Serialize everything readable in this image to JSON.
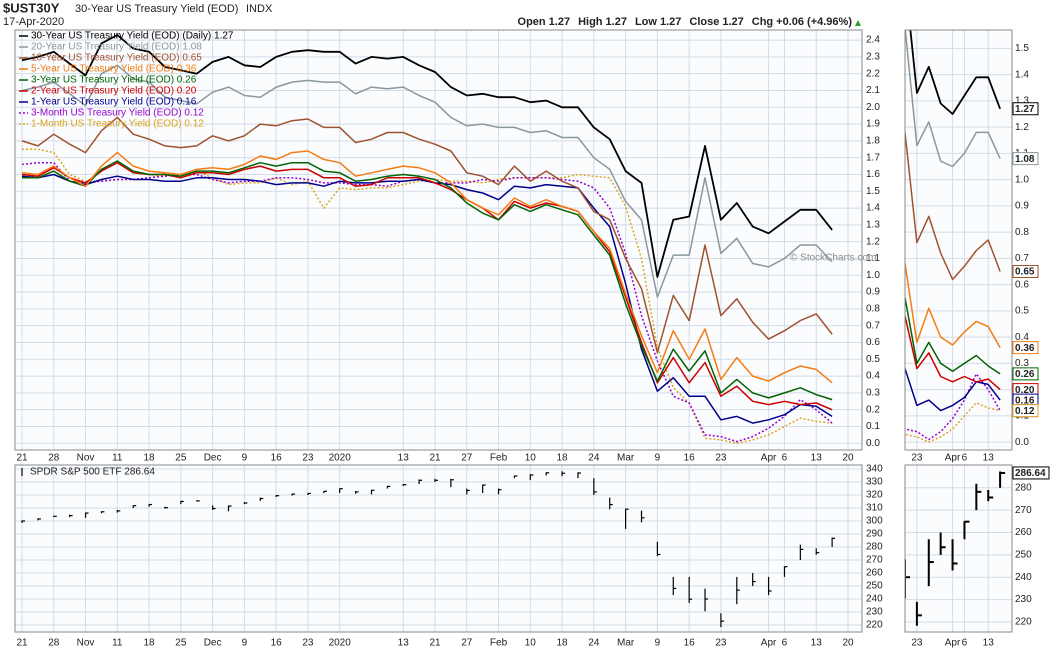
{
  "header": {
    "symbol": "$UST30Y",
    "name": "30-Year US Treasury Yield (EOD)",
    "exchange": "INDX",
    "date": "17-Apr-2020",
    "quote": [
      [
        "Open",
        "1.27"
      ],
      [
        "High",
        "1.27"
      ],
      [
        "Low",
        "1.27"
      ],
      [
        "Close",
        "1.27"
      ],
      [
        "Chg",
        "+0.06 (+4.96%)"
      ]
    ],
    "credit": "© StockCharts.com"
  },
  "chart_data": [
    {
      "type": "line",
      "categories": [
        "21",
        null,
        "28",
        null,
        "Nov",
        null,
        "11",
        null,
        "18",
        null,
        "25",
        null,
        "Dec",
        null,
        "9",
        null,
        "16",
        null,
        "23",
        null,
        "2020",
        null,
        null,
        null,
        "13",
        null,
        "21",
        null,
        "27",
        null,
        "Feb",
        null,
        "10",
        null,
        "18",
        null,
        "24",
        null,
        "Mar",
        null,
        "9",
        null,
        "16",
        null,
        "23",
        null,
        null,
        "Apr",
        "6",
        null,
        "13",
        null,
        "20"
      ],
      "series": [
        {
          "name": "30-Year US Treasury Yield (EOD) (Daily) 1.27",
          "color": "#000000",
          "dash": false,
          "values": [
            2.28,
            2.3,
            2.33,
            2.26,
            2.19,
            2.38,
            2.43,
            2.35,
            2.33,
            2.24,
            2.22,
            2.2,
            2.27,
            2.3,
            2.25,
            2.24,
            2.3,
            2.33,
            2.34,
            2.33,
            2.33,
            2.26,
            2.3,
            2.29,
            2.3,
            2.25,
            2.21,
            2.12,
            2.07,
            2.08,
            2.06,
            2.06,
            2.03,
            2.04,
            2.0,
            2.0,
            1.88,
            1.81,
            1.62,
            1.55,
            0.99,
            1.33,
            1.35,
            1.77,
            1.33,
            1.43,
            1.29,
            1.25,
            1.32,
            1.39,
            1.39,
            1.27,
            null
          ]
        },
        {
          "name": "20-Year US Treasury Yield (EOD) 1.08",
          "color": "#8a979e",
          "dash": false,
          "values": [
            2.1,
            2.12,
            2.15,
            2.08,
            2.01,
            2.2,
            2.25,
            2.17,
            2.15,
            2.06,
            2.04,
            2.02,
            2.09,
            2.12,
            2.07,
            2.06,
            2.12,
            2.15,
            2.16,
            2.15,
            2.15,
            2.08,
            2.12,
            2.11,
            2.12,
            2.07,
            2.03,
            1.94,
            1.89,
            1.9,
            1.88,
            1.88,
            1.85,
            1.86,
            1.82,
            1.82,
            1.7,
            1.63,
            1.44,
            1.33,
            0.87,
            1.12,
            1.12,
            1.58,
            1.13,
            1.22,
            1.07,
            1.05,
            1.1,
            1.18,
            1.18,
            1.08,
            null
          ]
        },
        {
          "name": "10-Year US Treasury Yield (EOD) 0.65",
          "color": "#a0522d",
          "dash": false,
          "values": [
            1.8,
            1.77,
            1.84,
            1.78,
            1.73,
            1.86,
            1.94,
            1.84,
            1.81,
            1.77,
            1.76,
            1.77,
            1.83,
            1.8,
            1.83,
            1.9,
            1.89,
            1.92,
            1.93,
            1.88,
            1.88,
            1.79,
            1.81,
            1.85,
            1.85,
            1.81,
            1.78,
            1.74,
            1.61,
            1.59,
            1.54,
            1.65,
            1.56,
            1.62,
            1.56,
            1.52,
            1.38,
            1.33,
            1.1,
            0.92,
            0.54,
            0.88,
            0.73,
            1.18,
            0.76,
            0.86,
            0.72,
            0.62,
            0.67,
            0.73,
            0.77,
            0.65,
            null
          ]
        },
        {
          "name": "5-Year US Treasury Yield (EOD) 0.36",
          "color": "#f57c12",
          "dash": false,
          "values": [
            1.61,
            1.6,
            1.65,
            1.58,
            1.53,
            1.65,
            1.73,
            1.65,
            1.62,
            1.61,
            1.6,
            1.63,
            1.64,
            1.63,
            1.66,
            1.71,
            1.69,
            1.73,
            1.74,
            1.69,
            1.67,
            1.59,
            1.61,
            1.63,
            1.65,
            1.64,
            1.61,
            1.55,
            1.45,
            1.4,
            1.36,
            1.46,
            1.41,
            1.45,
            1.41,
            1.38,
            1.26,
            1.16,
            0.89,
            0.64,
            0.42,
            0.67,
            0.5,
            0.68,
            0.38,
            0.51,
            0.4,
            0.37,
            0.42,
            0.46,
            0.44,
            0.36,
            null
          ]
        },
        {
          "name": "3-Year US Treasury Yield (EOD) 0.26",
          "color": "#006400",
          "dash": false,
          "values": [
            1.58,
            1.58,
            1.62,
            1.56,
            1.53,
            1.63,
            1.68,
            1.62,
            1.6,
            1.6,
            1.59,
            1.62,
            1.62,
            1.61,
            1.64,
            1.67,
            1.65,
            1.67,
            1.67,
            1.62,
            1.61,
            1.56,
            1.57,
            1.59,
            1.6,
            1.59,
            1.57,
            1.52,
            1.43,
            1.37,
            1.33,
            1.42,
            1.38,
            1.42,
            1.39,
            1.36,
            1.24,
            1.12,
            0.83,
            0.58,
            0.37,
            0.56,
            0.43,
            0.55,
            0.3,
            0.38,
            0.3,
            0.27,
            0.3,
            0.33,
            0.29,
            0.26,
            null
          ]
        },
        {
          "name": "2-Year US Treasury Yield (EOD) 0.20",
          "color": "#cc0000",
          "dash": false,
          "values": [
            1.6,
            1.59,
            1.64,
            1.58,
            1.55,
            1.62,
            1.67,
            1.61,
            1.6,
            1.6,
            1.58,
            1.61,
            1.61,
            1.6,
            1.63,
            1.65,
            1.62,
            1.63,
            1.63,
            1.58,
            1.58,
            1.53,
            1.54,
            1.58,
            1.58,
            1.58,
            1.55,
            1.51,
            1.45,
            1.4,
            1.33,
            1.44,
            1.4,
            1.43,
            1.41,
            1.38,
            1.26,
            1.14,
            0.87,
            0.6,
            0.36,
            0.51,
            0.36,
            0.48,
            0.28,
            0.34,
            0.25,
            0.23,
            0.25,
            0.23,
            0.24,
            0.2,
            null
          ],
          "value_labels": [
            null,
            null,
            null,
            null,
            null,
            null,
            null,
            null,
            null,
            null,
            null,
            null,
            null,
            null,
            null,
            null,
            null,
            null,
            null,
            null,
            null,
            null,
            null,
            null,
            null,
            null,
            null,
            null,
            null,
            null,
            null,
            null,
            null,
            null,
            null,
            null,
            null,
            null,
            null,
            null,
            null,
            null,
            null,
            null,
            null,
            null,
            null,
            null,
            null,
            null,
            null,
            "0.20",
            null
          ]
        },
        {
          "name": "1-Year US Treasury Yield (EOD) 0.16",
          "color": "#00008b",
          "dash": false,
          "values": [
            1.59,
            1.58,
            1.6,
            1.56,
            1.54,
            1.57,
            1.59,
            1.57,
            1.57,
            1.56,
            1.56,
            1.58,
            1.58,
            1.57,
            1.57,
            1.56,
            1.54,
            1.55,
            1.55,
            1.53,
            1.56,
            1.55,
            1.55,
            1.56,
            1.56,
            1.57,
            1.55,
            1.54,
            1.51,
            1.49,
            1.45,
            1.53,
            1.52,
            1.54,
            1.53,
            1.52,
            1.4,
            1.29,
            0.95,
            0.56,
            0.31,
            0.39,
            0.28,
            0.28,
            0.14,
            0.16,
            0.12,
            0.14,
            0.17,
            0.23,
            0.22,
            0.16,
            null
          ]
        },
        {
          "name": "3-Month US Treasury Yield (EOD) 0.12",
          "color": "#9400d3",
          "dash": true,
          "values": [
            1.66,
            1.67,
            1.67,
            1.56,
            1.55,
            1.56,
            1.57,
            1.57,
            1.58,
            1.59,
            1.6,
            1.6,
            1.57,
            1.55,
            1.56,
            1.56,
            1.58,
            1.58,
            1.57,
            1.55,
            1.55,
            1.54,
            1.54,
            1.53,
            1.56,
            1.57,
            1.55,
            1.55,
            1.55,
            1.57,
            1.56,
            1.58,
            1.58,
            1.58,
            1.57,
            1.56,
            1.52,
            1.4,
            1.13,
            0.76,
            0.49,
            0.28,
            0.24,
            0.05,
            0.04,
            0.01,
            0.04,
            0.09,
            0.16,
            0.26,
            0.2,
            0.12,
            null
          ]
        },
        {
          "name": "1-Month US Treasury Yield (EOD) 0.12",
          "color": "#daa520",
          "dash": true,
          "values": [
            1.75,
            1.75,
            1.73,
            1.6,
            1.56,
            1.56,
            1.57,
            1.57,
            1.58,
            1.6,
            1.6,
            1.62,
            1.58,
            1.54,
            1.55,
            1.55,
            1.58,
            1.54,
            1.56,
            1.4,
            1.52,
            1.51,
            1.52,
            1.52,
            1.54,
            1.56,
            1.57,
            1.56,
            1.56,
            1.55,
            1.57,
            1.58,
            1.58,
            1.58,
            1.58,
            1.6,
            1.59,
            1.58,
            1.41,
            1.1,
            0.57,
            0.33,
            0.24,
            0.03,
            0.02,
            0,
            0.02,
            0.05,
            0.1,
            0.15,
            0.13,
            0.12,
            null
          ]
        }
      ],
      "ylim": [
        -0.04,
        2.46
      ],
      "yticks": [
        {
          "value": 0,
          "label": "0.0"
        },
        0.1,
        0.2,
        0.3,
        0.4,
        0.5,
        0.6,
        0.7,
        0.8,
        0.9,
        {
          "value": 1,
          "label": "1.0"
        },
        1.1,
        1.2,
        1.3,
        1.4,
        1.5,
        1.6,
        1.7,
        1.8,
        1.9,
        {
          "value": 2,
          "label": "2.0"
        },
        2.1,
        2.2,
        2.3,
        2.4
      ],
      "zoom_xlim": [
        43,
        52
      ],
      "zoom_ylim": [
        -0.03,
        1.57
      ],
      "zoom_yticks": [
        {
          "value": 0,
          "label": "0.0"
        },
        0.1,
        0.2,
        0.3,
        0.4,
        0.5,
        0.6,
        0.7,
        0.8,
        0.9,
        {
          "value": 1,
          "label": "1.0"
        },
        1.1,
        1.2,
        1.3,
        1.4,
        1.5
      ],
      "grid": true
    },
    {
      "type": "ohlc",
      "name": "SPDR S&P 500 ETF 286.64",
      "color": "#000000",
      "categories": [
        "21",
        null,
        "28",
        null,
        "Nov",
        null,
        "11",
        null,
        "18",
        null,
        "25",
        null,
        "Dec",
        null,
        "9",
        null,
        "16",
        null,
        "23",
        null,
        "2020",
        null,
        null,
        null,
        "13",
        null,
        "21",
        null,
        "27",
        null,
        "Feb",
        null,
        "10",
        null,
        "18",
        null,
        "24",
        null,
        "Mar",
        null,
        "9",
        null,
        "16",
        null,
        "23",
        null,
        null,
        "Apr",
        "6",
        null,
        "13",
        null,
        "20"
      ],
      "high": [
        300.5,
        302,
        304,
        305,
        306.5,
        307.5,
        308.5,
        312,
        313,
        311,
        315.5,
        316,
        312,
        312,
        314.5,
        318,
        320,
        321,
        321.5,
        323,
        325,
        323,
        324,
        327,
        328.5,
        332,
        332.5,
        332.5,
        325,
        328,
        325,
        335,
        336,
        337.5,
        338.3,
        337.5,
        333,
        318,
        309.5,
        308,
        284,
        257,
        257,
        248,
        229,
        257,
        260,
        257,
        265,
        281.8,
        279,
        287.3,
        null
      ],
      "low": [
        298.5,
        300.5,
        303,
        303,
        302.5,
        306,
        306.5,
        310,
        311,
        309.5,
        313,
        315,
        308.5,
        307.5,
        313,
        315.5,
        318.5,
        319.5,
        320,
        321.5,
        321.5,
        321,
        320.5,
        325,
        327,
        328.5,
        330,
        326,
        320.5,
        321.5,
        320.5,
        333,
        331.5,
        335,
        334.5,
        333,
        320,
        309,
        294,
        299,
        273,
        243,
        237,
        230.5,
        218.3,
        236,
        250,
        243,
        257,
        270,
        274,
        280,
        null
      ],
      "close": [
        299.99,
        301.6,
        303.64,
        304.14,
        306.14,
        307.1,
        307.79,
        311.79,
        312.68,
        310.27,
        315.05,
        315.48,
        309.61,
        311.5,
        313.87,
        317.32,
        319.5,
        320.73,
        321.22,
        322.86,
        324.87,
        322.41,
        323.64,
        326.65,
        327.95,
        331.34,
        331.34,
        331.72,
        323.5,
        327.68,
        324.12,
        334.68,
        335.4,
        337.06,
        336.73,
        336.95,
        322.42,
        312.65,
        309.09,
        302.46,
        274.23,
        248.11,
        239.85,
        240.0,
        222.95,
        246.79,
        253.42,
        246.15,
        264.86,
        278.2,
        275.66,
        286.64,
        null
      ],
      "ylim": [
        214.6,
        343.1
      ],
      "yticks": [
        220,
        230,
        240,
        250,
        260,
        270,
        280,
        290,
        300,
        310,
        320,
        330,
        340
      ],
      "zoom_xlim": [
        43,
        52
      ],
      "zoom_ylim": [
        215.5,
        290.2
      ],
      "zoom_yticks": [
        220,
        230,
        240,
        250,
        260,
        270,
        280
      ],
      "grid": true
    }
  ]
}
